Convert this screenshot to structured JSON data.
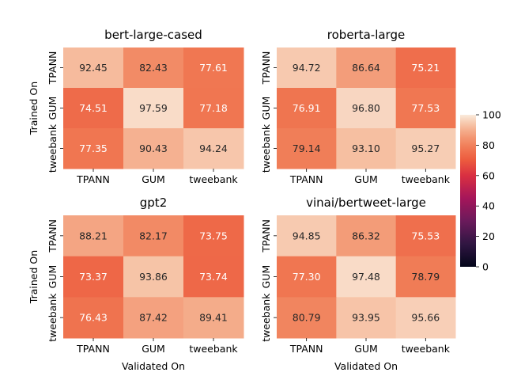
{
  "chart_data": {
    "type": "heatmap",
    "colorbar": {
      "min": 0,
      "max": 100,
      "ticks": [
        0,
        20,
        40,
        60,
        80,
        100
      ]
    },
    "panels": [
      {
        "title": "bert-large-cased",
        "rows": [
          "TPANN",
          "GUM",
          "tweebank"
        ],
        "cols": [
          "TPANN",
          "GUM",
          "tweebank"
        ],
        "values": [
          [
            92.45,
            82.43,
            77.61
          ],
          [
            74.51,
            97.59,
            77.18
          ],
          [
            77.35,
            90.43,
            94.24
          ]
        ],
        "ylabel": "Trained On",
        "xlabel": ""
      },
      {
        "title": "roberta-large",
        "rows": [
          "TPANN",
          "GUM",
          "tweebank"
        ],
        "cols": [
          "TPANN",
          "GUM",
          "tweebank"
        ],
        "values": [
          [
            94.72,
            86.64,
            75.21
          ],
          [
            76.91,
            96.8,
            77.53
          ],
          [
            79.14,
            93.1,
            95.27
          ]
        ],
        "ylabel": "",
        "xlabel": ""
      },
      {
        "title": "gpt2",
        "rows": [
          "TPANN",
          "GUM",
          "tweebank"
        ],
        "cols": [
          "TPANN",
          "GUM",
          "tweebank"
        ],
        "values": [
          [
            88.21,
            82.17,
            73.75
          ],
          [
            73.37,
            93.86,
            73.74
          ],
          [
            76.43,
            87.42,
            89.41
          ]
        ],
        "ylabel": "Trained On",
        "xlabel": "Validated On"
      },
      {
        "title": "vinai/bertweet-large",
        "rows": [
          "TPANN",
          "GUM",
          "tweebank"
        ],
        "cols": [
          "TPANN",
          "GUM",
          "tweebank"
        ],
        "values": [
          [
            94.85,
            86.32,
            75.53
          ],
          [
            77.3,
            97.48,
            78.79
          ],
          [
            80.79,
            93.95,
            95.66
          ]
        ],
        "ylabel": "",
        "xlabel": "Validated On"
      }
    ]
  }
}
